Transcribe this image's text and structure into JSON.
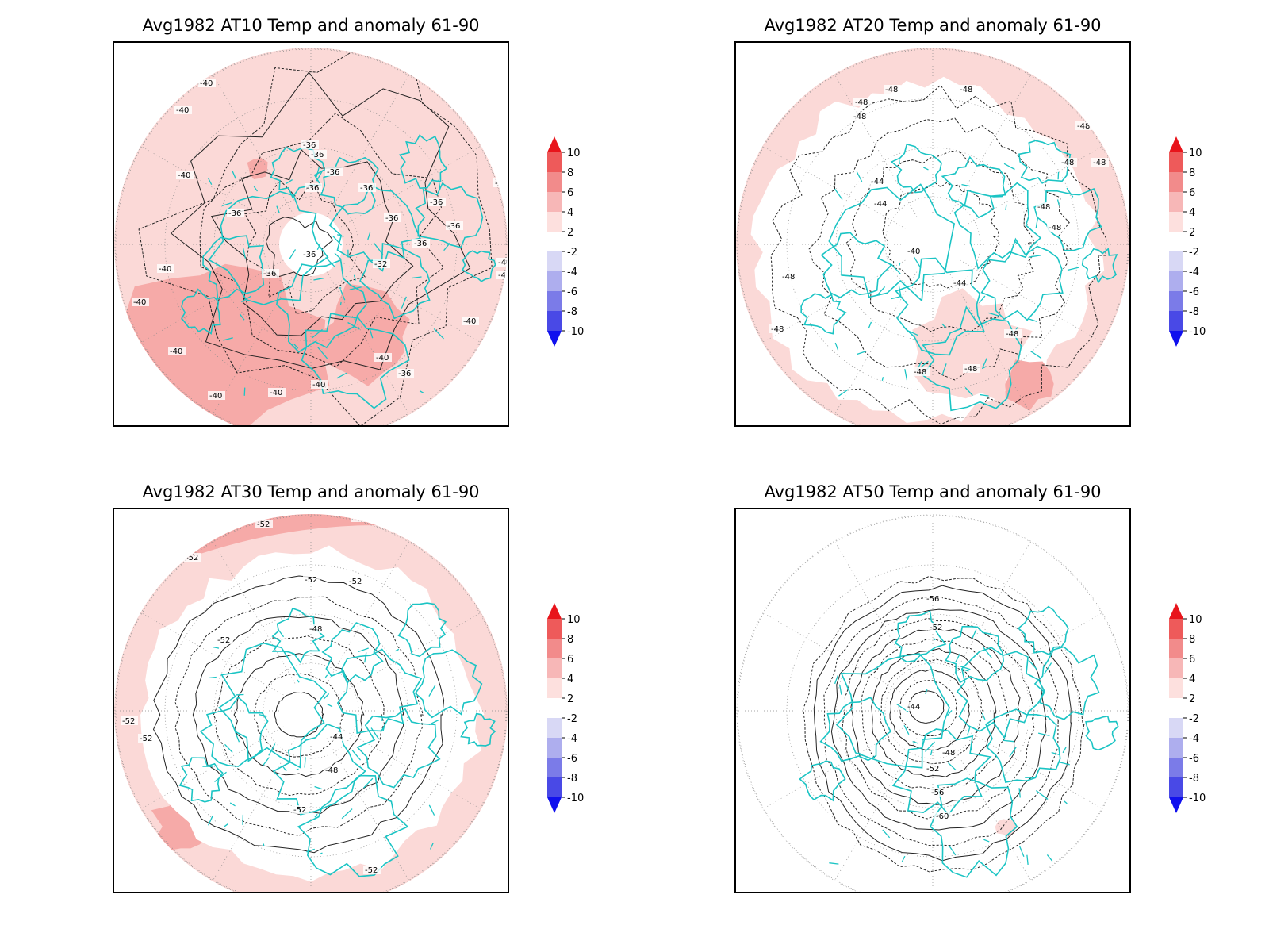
{
  "panels": [
    {
      "title": "Avg1982 AT10 Temp and anomaly 61-90",
      "contour_labels": [
        "-40",
        "-40",
        "-40",
        "-40",
        "-40",
        "-40",
        "-36",
        "-36",
        "-36",
        "-36",
        "-36",
        "-36",
        "-36",
        "-40",
        "-36",
        "-36",
        "-36",
        "-36",
        "-36",
        "-32",
        "-36",
        "-40",
        "-40",
        "-40",
        "-40",
        "-40",
        "-40",
        "-36",
        "-40",
        "-40",
        "-40",
        "-40"
      ],
      "shading": "warm"
    },
    {
      "title": "Avg1982 AT20 Temp and anomaly 61-90",
      "contour_labels": [
        "-48",
        "-48",
        "-48",
        "-48",
        "-48",
        "-44",
        "-44",
        "-40",
        "-44",
        "-48",
        "-48",
        "-48",
        "-48",
        "-48",
        "-48",
        "-48",
        "-48",
        "-48"
      ],
      "shading": "mixed"
    },
    {
      "title": "Avg1982 AT30 Temp and anomaly 61-90",
      "contour_labels": [
        "-52",
        "-52",
        "-52",
        "-52",
        "-52",
        "-52",
        "-48",
        "-44",
        "-48",
        "-52",
        "-52",
        "-52",
        "-52"
      ],
      "shading": "ring"
    },
    {
      "title": "Avg1982 AT50 Temp and anomaly 61-90",
      "contour_labels": [
        "-56",
        "-52",
        "-44",
        "-48",
        "-52",
        "-56",
        "-60"
      ],
      "shading": "none"
    }
  ],
  "colorbar": {
    "labels": [
      "10",
      "8",
      "6",
      "4",
      "2",
      "-2",
      "-4",
      "-6",
      "-8",
      "-10"
    ],
    "colors": [
      "#e8141b",
      "#ee5a5a",
      "#f28b8b",
      "#f7b7b7",
      "#fde0de",
      "#ffffff",
      "#d8d8f5",
      "#aeaeee",
      "#7b7be8",
      "#4949e6",
      "#1010ee"
    ]
  },
  "map_colors": {
    "coast": "#1bc4c4",
    "anomaly_2_4": "#fbd9d7",
    "anomaly_4_6": "#f6aaa8",
    "contour": "#222222",
    "grid": "#888888"
  }
}
